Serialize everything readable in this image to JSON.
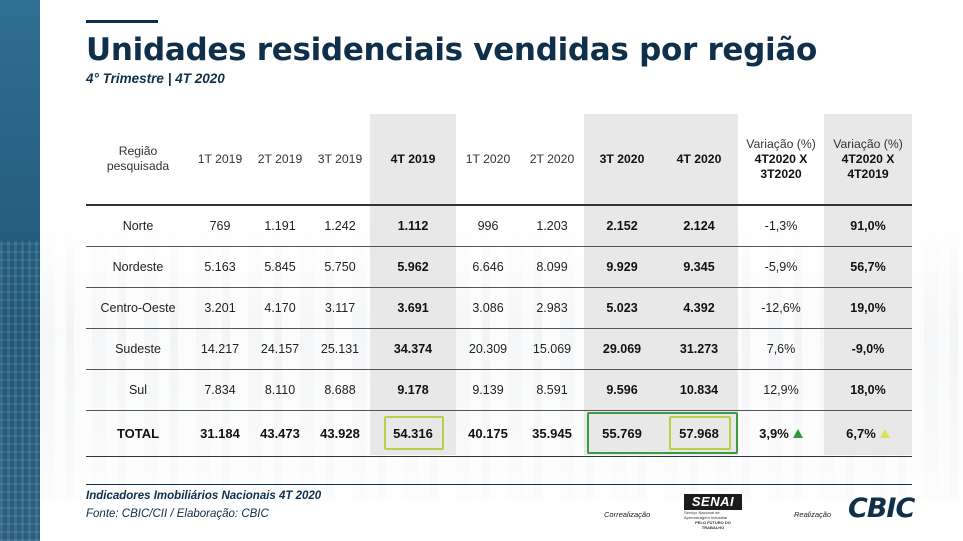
{
  "title": "Unidades residenciais vendidas por região",
  "subtitle": "4° Trimestre | 4T 2020",
  "table": {
    "headers": [
      "Região pesquisada",
      "1T 2019",
      "2T 2019",
      "3T 2019",
      "4T 2019",
      "1T 2020",
      "2T 2020",
      "3T 2020",
      "4T 2020",
      "Variação (%)",
      "Variação (%)"
    ],
    "var1_sub": "4T2020 X 3T2020",
    "var2_sub": "4T2020 X 4T2019",
    "rows": [
      {
        "regiao": "Norte",
        "v": [
          "769",
          "1.191",
          "1.242",
          "1.112",
          "996",
          "1.203",
          "2.152",
          "2.124",
          "-1,3%",
          "91,0%"
        ]
      },
      {
        "regiao": "Nordeste",
        "v": [
          "5.163",
          "5.845",
          "5.750",
          "5.962",
          "6.646",
          "8.099",
          "9.929",
          "9.345",
          "-5,9%",
          "56,7%"
        ]
      },
      {
        "regiao": "Centro-Oeste",
        "v": [
          "3.201",
          "4.170",
          "3.117",
          "3.691",
          "3.086",
          "2.983",
          "5.023",
          "4.392",
          "-12,6%",
          "19,0%"
        ]
      },
      {
        "regiao": "Sudeste",
        "v": [
          "14.217",
          "24.157",
          "25.131",
          "34.374",
          "20.309",
          "15.069",
          "29.069",
          "31.273",
          "7,6%",
          "-9,0%"
        ]
      },
      {
        "regiao": "Sul",
        "v": [
          "7.834",
          "8.110",
          "8.688",
          "9.178",
          "9.139",
          "8.591",
          "9.596",
          "10.834",
          "12,9%",
          "18,0%"
        ]
      }
    ],
    "total": {
      "label": "TOTAL",
      "v": [
        "31.184",
        "43.473",
        "43.928",
        "54.316",
        "40.175",
        "35.945",
        "55.769",
        "57.968",
        "3,9%",
        "6,7%"
      ]
    }
  },
  "icons": {
    "var1_total": "triangle-up-icon",
    "var2_total": "triangle-up-icon"
  },
  "colors": {
    "brand": "#0f2f4a",
    "highlight": "#e8e8e8",
    "up_green": "#2e9a3a",
    "up_light": "#d8e15a",
    "box_lime": "#b9cf4a",
    "box_green": "#3d9a47"
  },
  "footer": {
    "line1": "Indicadores Imobiliários Nacionais 4T 2020",
    "line2": "Fonte: CBIC/CII / Elaboração: CBIC",
    "correalizacao": "Correalização",
    "realizacao": "Realização",
    "senai": "SENAI",
    "senai_tag1": "Serviço Nacional de Aprendizagem Industrial",
    "senai_tag2": "PELO FUTURO DO TRABALHO",
    "cbic": "CBIC"
  }
}
